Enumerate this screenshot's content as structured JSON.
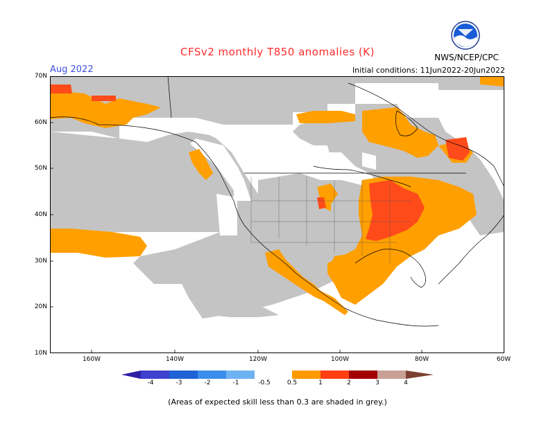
{
  "header": {
    "title": "CFSv2 monthly T850 anomalies (K)",
    "month": "Aug 2022",
    "initial_conditions": "Initial conditions: 11Jun2022-20Jun2022",
    "agency": "NWS/NCEP/CPC",
    "logo_text": "NOAA"
  },
  "axes": {
    "lat_labels": [
      "70N",
      "60N",
      "50N",
      "40N",
      "30N",
      "20N",
      "10N"
    ],
    "lon_labels": [
      "160W",
      "140W",
      "120W",
      "100W",
      "80W",
      "60W"
    ]
  },
  "colorbar": {
    "labels": [
      "-4",
      "-3",
      "-2",
      "-1",
      "-0.5",
      "0.5",
      "1",
      "2",
      "3",
      "4"
    ],
    "colors": [
      "#2f1fa6",
      "#4040cf",
      "#1f62d6",
      "#3b8eea",
      "#6fb2f2",
      "#ffffff",
      "#ff9900",
      "#ff3f12",
      "#a30000",
      "#c8a095",
      "#7a4030"
    ]
  },
  "colors": {
    "skill_grey": "#c4c4c4",
    "anomaly_orange": "#ff9f00",
    "anomaly_red": "#ff4a1a",
    "ocean": "#ffffff"
  },
  "footnote": "(Areas of expected skill less than 0.3 are shaded in grey.)"
}
